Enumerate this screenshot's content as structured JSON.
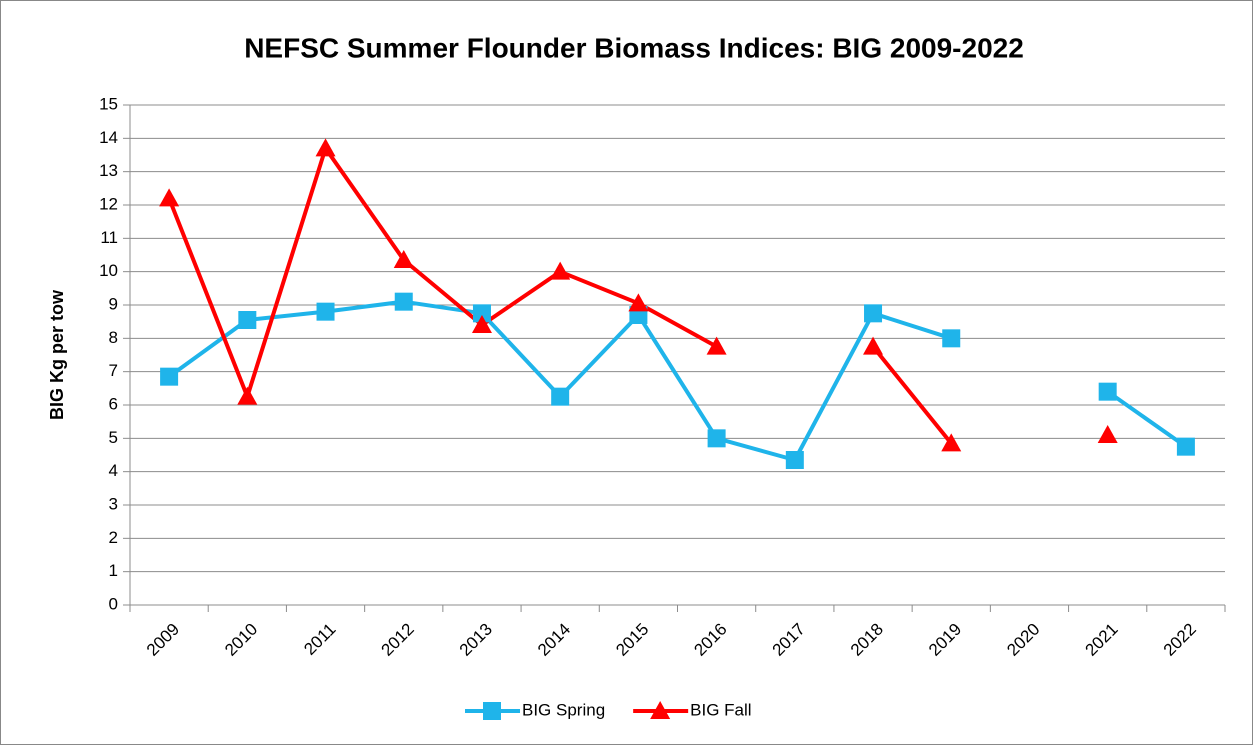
{
  "chart_data": {
    "type": "line",
    "title": "NEFSC Summer Flounder Biomass Indices: BIG 2009-2022",
    "y_label": "BIG Kg per tow",
    "categories": [
      "2009",
      "2010",
      "2011",
      "2012",
      "2013",
      "2014",
      "2015",
      "2016",
      "2017",
      "2018",
      "2019",
      "2020",
      "2021",
      "2022"
    ],
    "series": [
      {
        "name": "BIG Spring",
        "color": "#1fb4ea",
        "marker": "square",
        "values": [
          6.85,
          8.55,
          8.8,
          9.1,
          8.75,
          6.25,
          8.7,
          5.0,
          4.35,
          8.75,
          8.0,
          null,
          6.4,
          4.75
        ]
      },
      {
        "name": "BIG Fall",
        "color": "#ff0000",
        "marker": "triangle",
        "values": [
          12.2,
          6.25,
          13.7,
          10.35,
          8.4,
          10.0,
          9.05,
          7.75,
          null,
          7.75,
          4.85,
          null,
          5.1,
          null
        ]
      }
    ],
    "ylim": [
      0,
      15
    ],
    "yticks": [
      0,
      1,
      2,
      3,
      4,
      5,
      6,
      7,
      8,
      9,
      10,
      11,
      12,
      13,
      14,
      15
    ],
    "grid": true,
    "legend": "bottom"
  }
}
